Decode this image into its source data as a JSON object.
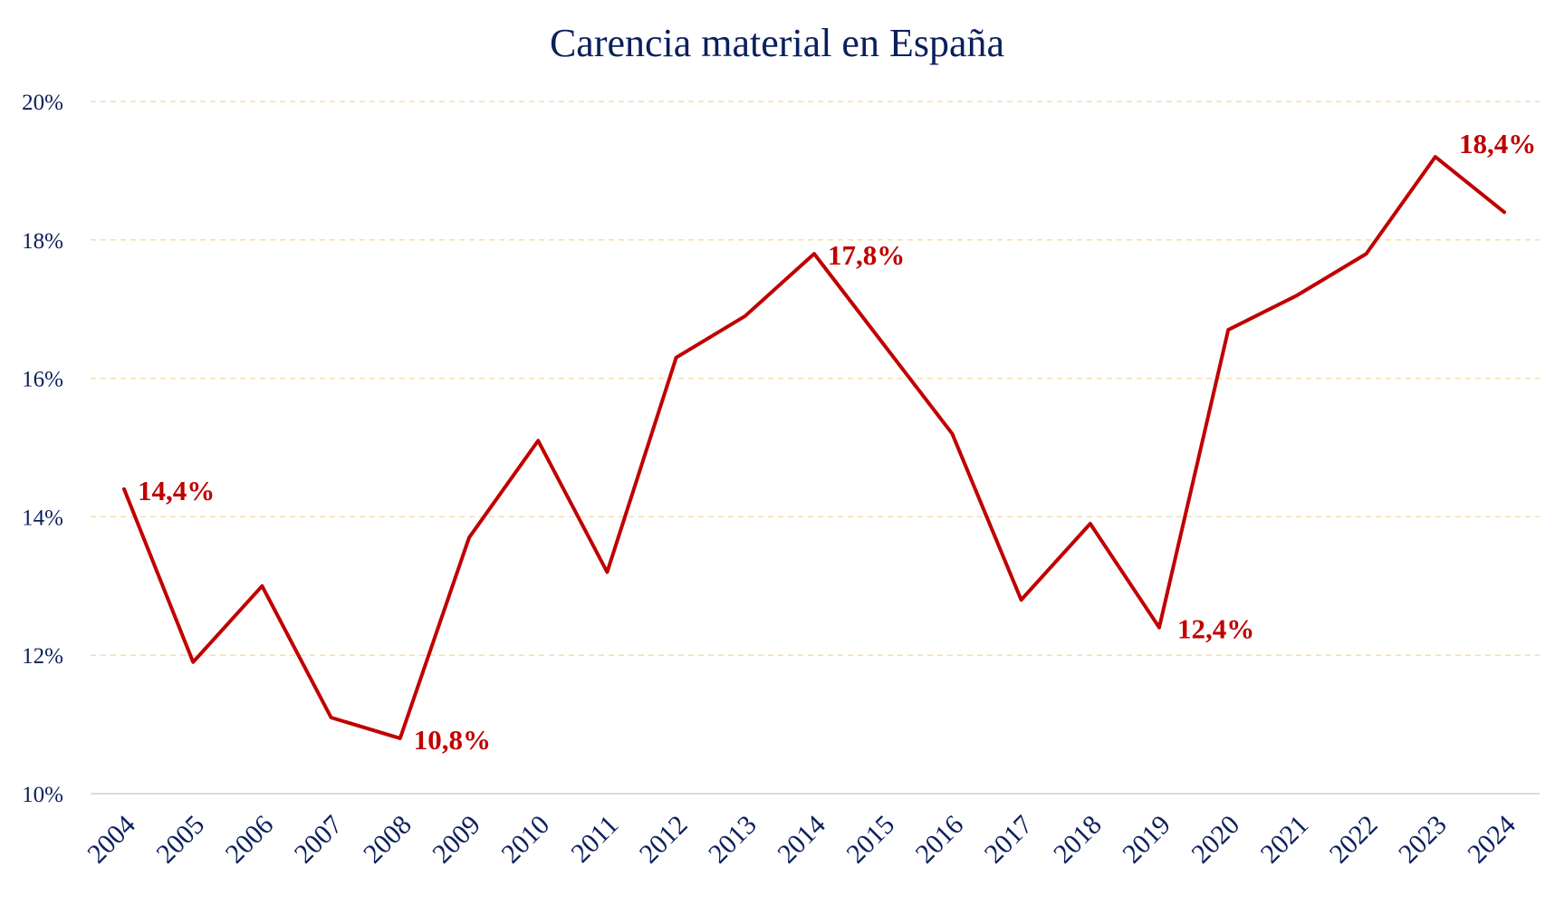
{
  "chart_data": {
    "type": "line",
    "title": "Carencia material en España",
    "xlabel": "",
    "ylabel": "",
    "ylim": [
      10,
      20
    ],
    "yticks": [
      10,
      12,
      14,
      16,
      18,
      20
    ],
    "ytick_labels": [
      "10%",
      "12%",
      "14%",
      "16%",
      "18%",
      "20%"
    ],
    "grid": true,
    "x": [
      "2004",
      "2005",
      "2006",
      "2007",
      "2008",
      "2009",
      "2010",
      "2011",
      "2012",
      "2013",
      "2014",
      "2015",
      "2016",
      "2017",
      "2018",
      "2019",
      "2020",
      "2021",
      "2022",
      "2023",
      "2024"
    ],
    "series": [
      {
        "name": "Carencia material",
        "color": "#c00000",
        "values": [
          14.4,
          11.9,
          13.0,
          11.1,
          10.8,
          13.7,
          15.1,
          13.2,
          16.3,
          16.9,
          17.8,
          16.5,
          15.2,
          12.8,
          13.9,
          12.4,
          16.7,
          17.2,
          17.8,
          19.2,
          18.4
        ]
      }
    ],
    "annotations": [
      {
        "index": 0,
        "text": "14,4%",
        "placement": "right"
      },
      {
        "index": 4,
        "text": "10,8%",
        "placement": "right"
      },
      {
        "index": 10,
        "text": "17,8%",
        "placement": "right"
      },
      {
        "index": 15,
        "text": "12,4%",
        "placement": "right"
      },
      {
        "index": 20,
        "text": "18,4%",
        "placement": "above"
      }
    ]
  },
  "colors": {
    "title": "#0b1f5c",
    "axis_text": "#0b1f5c",
    "line": "#c00000",
    "grid": "#f7deaa"
  }
}
